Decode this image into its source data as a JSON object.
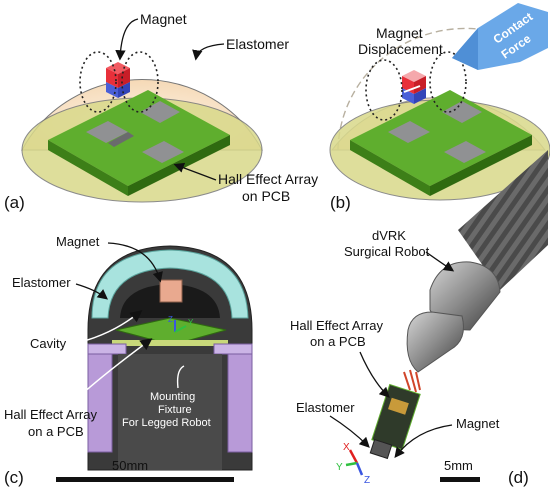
{
  "panel_a": {
    "tag": "(a)",
    "magnet": "Magnet",
    "elastomer": "Elastomer",
    "hall_array_line1": "Hall Effect Array",
    "hall_array_line2": "on PCB"
  },
  "panel_b": {
    "tag": "(b)",
    "displacement_line1": "Magnet",
    "displacement_line2": "Displacement",
    "contact_force_line1": "Contact",
    "contact_force_line2": "Force"
  },
  "panel_c": {
    "tag": "(c)",
    "magnet": "Magnet",
    "elastomer": "Elastomer",
    "cavity": "Cavity",
    "hall_array_line1": "Hall Effect Array",
    "hall_array_line2": "on a PCB",
    "fixture_line1": "Mounting",
    "fixture_line2": "Fixture",
    "fixture_line3": "For Legged Robot",
    "scale": "50mm",
    "axis_z": "Z",
    "axis_y": "Y"
  },
  "panel_d": {
    "tag": "(d)",
    "robot_line1": "dVRK",
    "robot_line2": "Surgical Robot",
    "hall_array_line1": "Hall Effect Array",
    "hall_array_line2": "on a PCB",
    "elastomer": "Elastomer",
    "magnet": "Magnet",
    "scale": "5mm",
    "axis_x": "X",
    "axis_y": "Y",
    "axis_z": "Z"
  },
  "colors": {
    "dome_fill": "#f9e2c4",
    "pcb_green": "#5fae2e",
    "chip_gray": "#8f9092",
    "magnet_red": "#e8303a",
    "magnet_blue": "#4a5fd8",
    "force_arrow": "#6aa8e8",
    "elastomer_cyan": "#a8e3de",
    "fixture_purple": "#b89ad8"
  }
}
